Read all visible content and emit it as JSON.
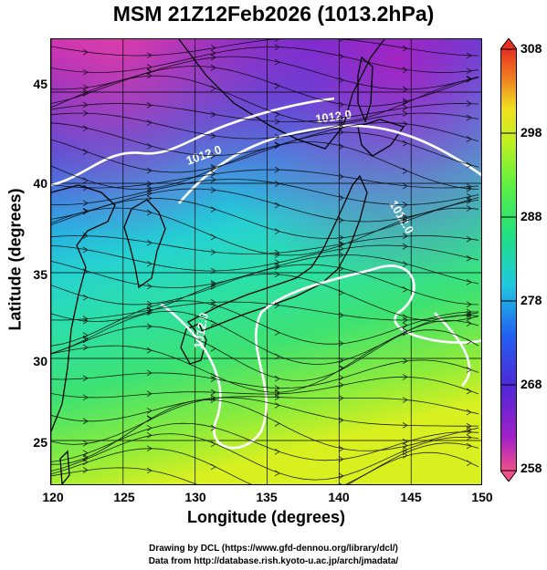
{
  "title": "MSM 21Z12Feb2026 (1013.2hPa)",
  "x_axis": {
    "label": "Longitude (degrees)",
    "ticks": [
      "120",
      "125",
      "130",
      "135",
      "140",
      "145",
      "150"
    ]
  },
  "y_axis": {
    "label": "Latitude  (degrees)",
    "ticks": [
      "45",
      "40",
      "35",
      "30",
      "25"
    ]
  },
  "colorbar": {
    "ticks": [
      "308",
      "298",
      "288",
      "278",
      "268",
      "258"
    ],
    "range": [
      258,
      308
    ],
    "colors": [
      "#f0508c",
      "#a020c8",
      "#5028d8",
      "#2060f0",
      "#20c8e0",
      "#20e080",
      "#60f040",
      "#c0f020",
      "#f0e020",
      "#f08020",
      "#e83020"
    ]
  },
  "contour_labels": [
    "1012.0",
    "1012.0",
    "1012.0",
    "1012.0"
  ],
  "credits": {
    "line1": "Drawing by DCL (https://www.gfd-dennou.org/library/dcl/)",
    "line2": "Data from http://database.rish.kyoto-u.ac.jp/arch/jmadata/"
  }
}
